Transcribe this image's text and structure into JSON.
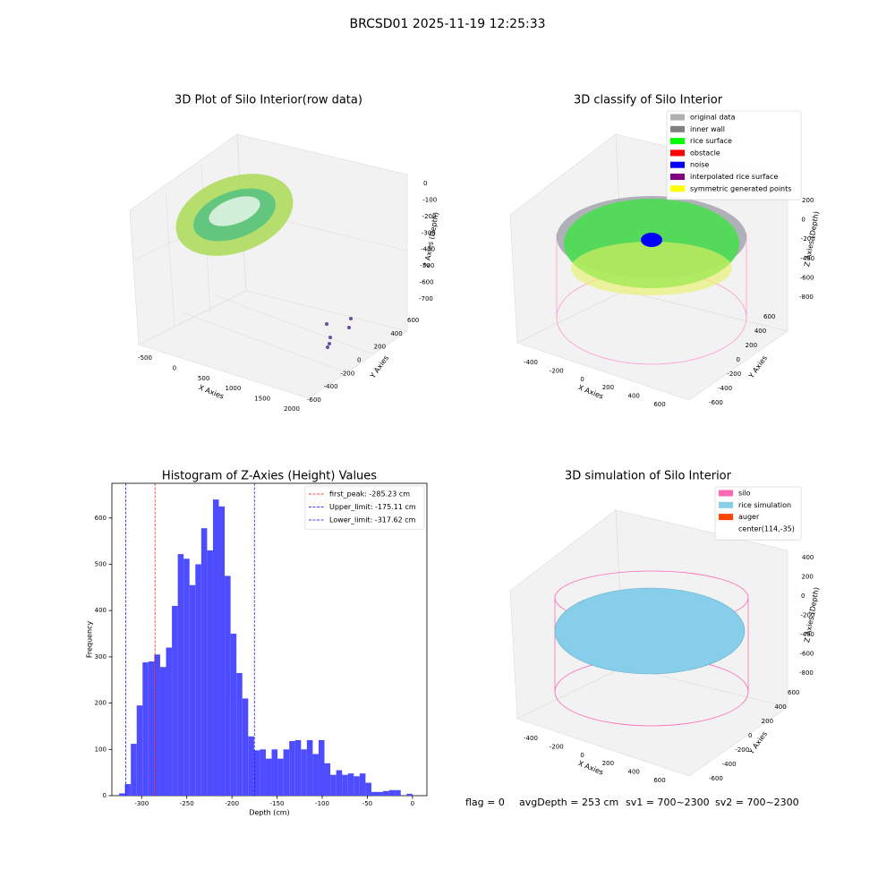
{
  "title": "BRCSD01 2025-11-19 12:25:33",
  "footer": [
    "flag = 0",
    "avgDepth = 253 cm",
    "sv1 = 700~2300",
    "sv2 = 700~2300"
  ],
  "chart_data": [
    {
      "type": "scatter3d",
      "title": "3D Plot of Silo Interior(row data)",
      "xlabel": "X Axies",
      "ylabel": "Y Axies",
      "zlabel": "Z Axies (Depth)",
      "xticks": [
        -500,
        0,
        500,
        1000,
        1500,
        2000
      ],
      "yticks": [
        -600,
        -400,
        -200,
        0,
        200,
        400,
        600
      ],
      "zticks": [
        0,
        -100,
        -200,
        -300,
        -400,
        -500,
        -600,
        -700
      ]
    },
    {
      "type": "scatter3d",
      "title": "3D classify of Silo Interior",
      "xlabel": "X Axies",
      "ylabel": "Y Axies",
      "zlabel": "Z Axies (Depth)",
      "xticks": [
        -400,
        -200,
        0,
        200,
        400,
        600
      ],
      "yticks": [
        -600,
        -400,
        -200,
        0,
        200,
        400,
        600
      ],
      "zticks": [
        200,
        0,
        -200,
        -400,
        -600,
        -800
      ],
      "series": [
        {
          "name": "original data",
          "color": "#b0b0b0"
        },
        {
          "name": "inner wall",
          "color": "#808080"
        },
        {
          "name": "rice surface",
          "color": "#00ff00"
        },
        {
          "name": "obstacle",
          "color": "#ff0000"
        },
        {
          "name": "noise",
          "color": "#0000ff"
        },
        {
          "name": "interpolated rice surface",
          "color": "#800080"
        },
        {
          "name": "symmetric generated points",
          "color": "#ffff00"
        }
      ]
    },
    {
      "type": "histogram",
      "title": "Histogram of Z-Axies (Height) Values",
      "xlabel": "Depth (cm)",
      "ylabel": "Frequency",
      "color": "#4d4dff",
      "bins": [
        -325,
        -318.5,
        -312,
        -305.5,
        -299,
        -292.5,
        -286,
        -279.5,
        -273,
        -266.5,
        -260,
        -253.5,
        -247,
        -240.5,
        -234,
        -227.5,
        -221,
        -214.5,
        -208,
        -201.5,
        -195,
        -188.5,
        -182,
        -175.5,
        -169,
        -162.5,
        -156,
        -149.5,
        -143,
        -136.5,
        -130,
        -123.5,
        -117,
        -110.5,
        -104,
        -97.5,
        -91,
        -84.5,
        -78,
        -71.5,
        -65,
        -58.5,
        -52,
        -45.5,
        -39,
        -32.5,
        -26,
        -19.5,
        -13,
        -6.5,
        0
      ],
      "counts": [
        5,
        25,
        112,
        195,
        288,
        290,
        305,
        278,
        320,
        410,
        522,
        512,
        455,
        500,
        578,
        530,
        640,
        625,
        475,
        350,
        265,
        210,
        128,
        98,
        100,
        80,
        100,
        80,
        100,
        118,
        120,
        100,
        120,
        90,
        120,
        70,
        45,
        55,
        45,
        48,
        42,
        48,
        28,
        8,
        8,
        10,
        12,
        12,
        0,
        4
      ],
      "xlim": [
        -333,
        16
      ],
      "ylim": [
        0,
        675
      ],
      "xticks": [
        -300,
        -250,
        -200,
        -150,
        -100,
        -50,
        0
      ],
      "yticks": [
        0,
        100,
        200,
        300,
        400,
        500,
        600
      ],
      "vlines": [
        {
          "name": "first_peak: -285.23 cm",
          "value": -285.23,
          "color": "#ff0000"
        },
        {
          "name": "Upper_limit: -175.11 cm",
          "value": -175.11,
          "color": "#0000ff"
        },
        {
          "name": "Lower_limit: -317.62 cm",
          "value": -317.62,
          "color": "#0000ff"
        }
      ],
      "legend": "upper right"
    },
    {
      "type": "surface3d",
      "title": "3D simulation of Silo Interior",
      "xlabel": "X Axies",
      "ylabel": "Y Axies",
      "zlabel": "Z Axies (Depth)",
      "xticks": [
        -400,
        -200,
        0,
        200,
        400,
        600
      ],
      "yticks": [
        -600,
        -400,
        -200,
        0,
        200,
        400,
        600
      ],
      "zticks": [
        400,
        200,
        0,
        -200,
        -400,
        -600,
        -800
      ],
      "series": [
        {
          "name": "silo",
          "color": "#ff69b4"
        },
        {
          "name": "rice simulation",
          "color": "#87ceeb"
        },
        {
          "name": "auger",
          "color": "#ff4500"
        },
        {
          "name": "center(114,-35)"
        }
      ]
    }
  ]
}
